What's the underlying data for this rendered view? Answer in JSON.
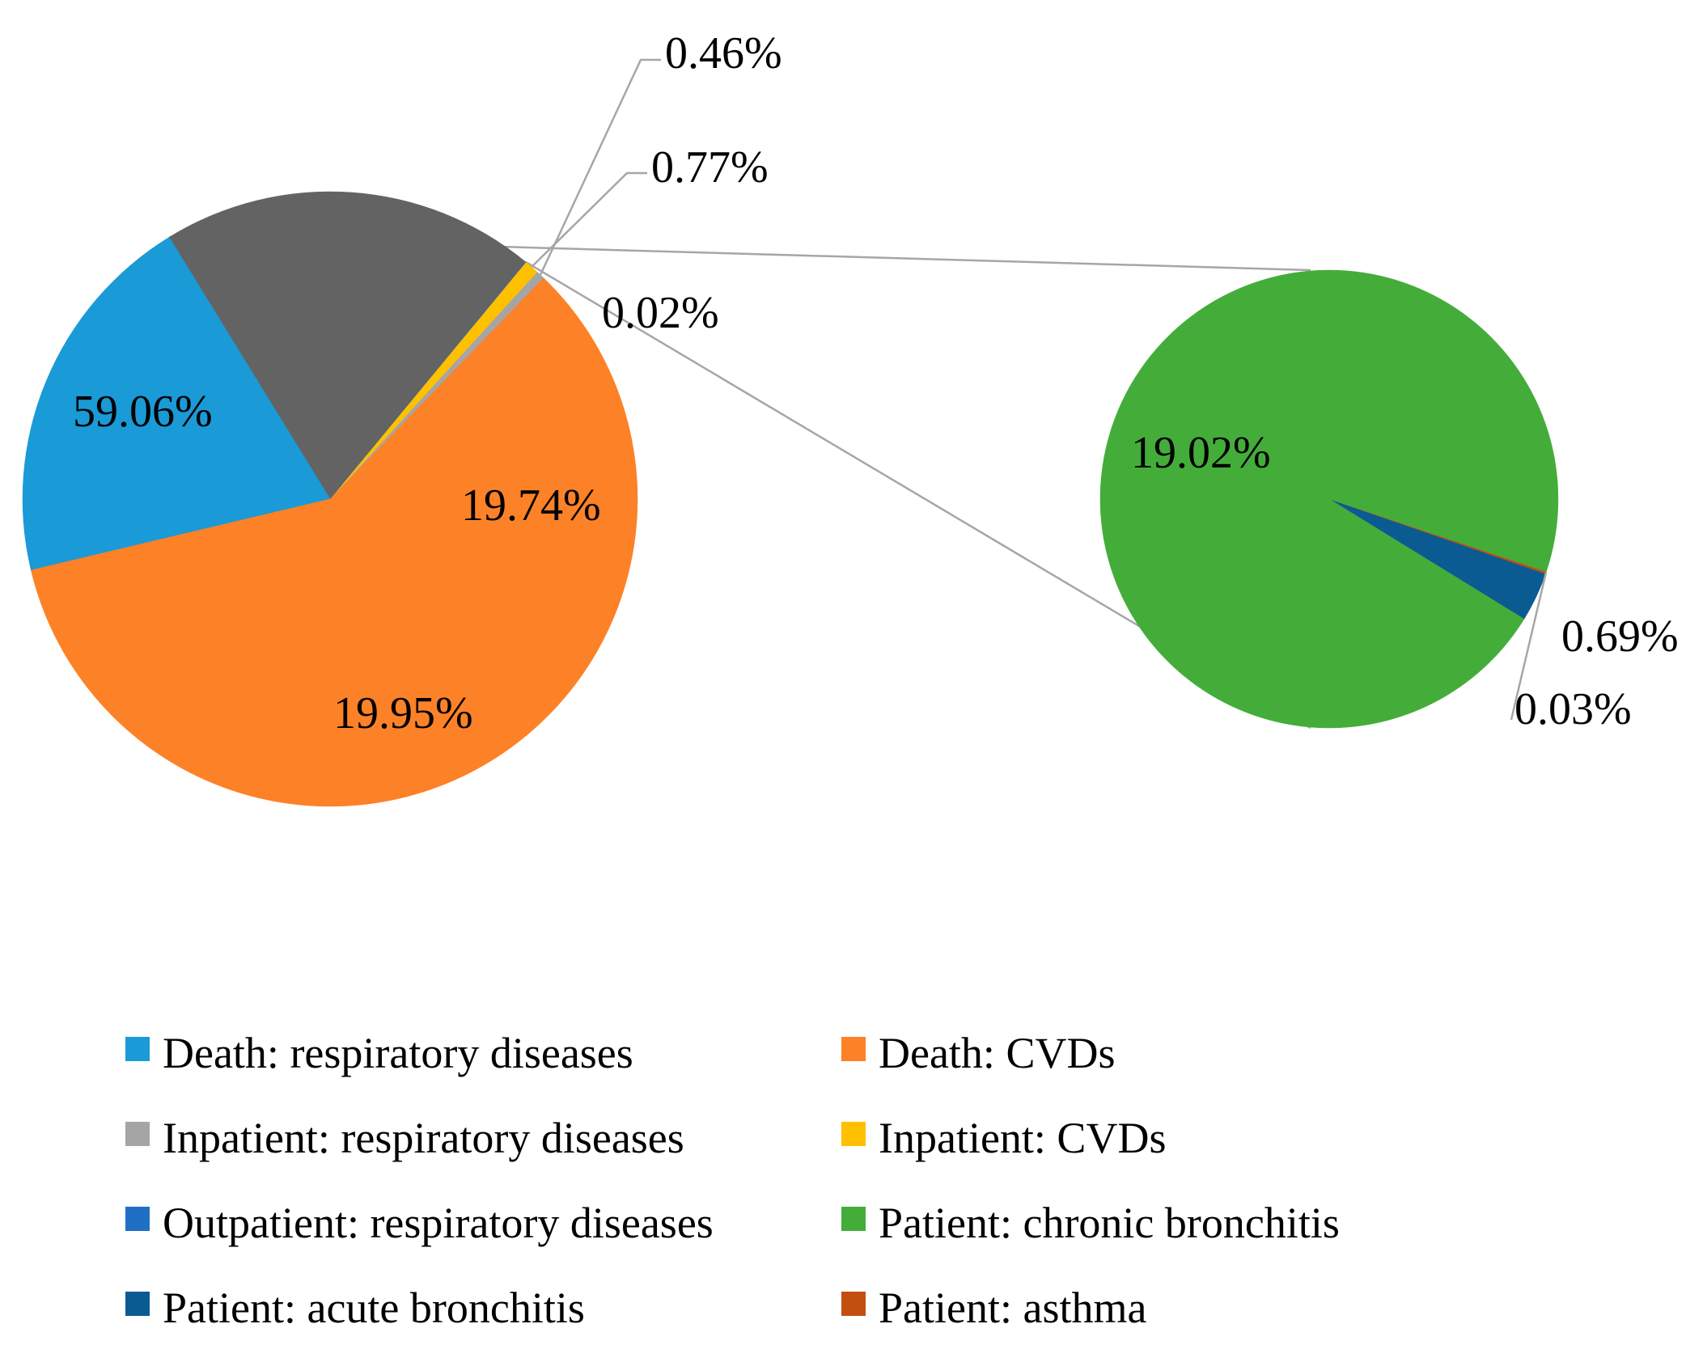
{
  "chart_data": {
    "type": "pie",
    "subtype": "pie-of-pie",
    "main_pie": {
      "slices": [
        {
          "series_index": 2,
          "value": 0.46,
          "label": "0.46%",
          "color": "#a5a5a5"
        },
        {
          "series_index": 3,
          "value": 0.77,
          "label": "0.77%",
          "color": "#ffc000"
        },
        {
          "series_index": 4,
          "value": 0.02,
          "label": "0.02%",
          "color": "#1f6fc4"
        },
        {
          "series_index": -1,
          "value": 19.74,
          "label": "19.74%",
          "color": "#636363"
        },
        {
          "series_index": 0,
          "value": 19.95,
          "label": "19.95%",
          "color": "#1a9ad6"
        },
        {
          "series_index": 1,
          "value": 59.06,
          "label": "59.06%",
          "color": "#fd8127"
        }
      ]
    },
    "secondary_pie": {
      "slices": [
        {
          "series_index": 6,
          "value": 0.69,
          "label": "0.69%",
          "color": "#0b5b93"
        },
        {
          "series_index": 7,
          "value": 0.03,
          "label": "0.03%",
          "color": "#c24f10"
        },
        {
          "series_index": 5,
          "value": 19.02,
          "label": "19.02%",
          "color": "#44ad3a"
        }
      ]
    },
    "legend": {
      "placement": "bottom",
      "entries": [
        {
          "name": "Death: respiratory diseases",
          "color": "#1a9ad6"
        },
        {
          "name": "Death: CVDs",
          "color": "#fd8127"
        },
        {
          "name": "Inpatient: respiratory diseases",
          "color": "#a5a5a5"
        },
        {
          "name": "Inpatient: CVDs",
          "color": "#ffc000"
        },
        {
          "name": "Outpatient: respiratory diseases",
          "color": "#1f6fc4"
        },
        {
          "name": "Patient: chronic bronchitis",
          "color": "#44ad3a"
        },
        {
          "name": "Patient: acute bronchitis",
          "color": "#0b5b93"
        },
        {
          "name": "Patient: asthma",
          "color": "#c24f10"
        }
      ]
    }
  }
}
